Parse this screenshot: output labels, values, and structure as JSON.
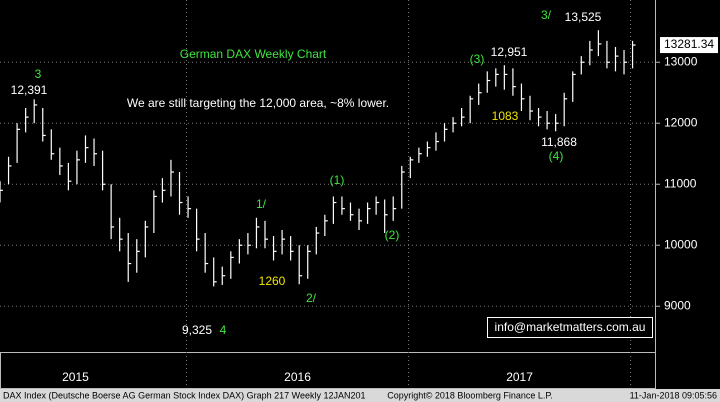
{
  "chart_data": {
    "type": "ohlc",
    "footer_left": "DAX Index (Deutsche Boerse AG German Stock Index DAX) Graph 217  Weekly 12JAN201",
    "footer_center": "Copyright© 2018 Bloomberg Finance L.P.",
    "footer_right": "11-Jan-2018 09:05:56",
    "annotations": [
      {
        "text": "German DAX Weekly Chart"
      },
      {
        "text": "We are still targeting the 12,000 area, ~8% lower."
      },
      {
        "text": "3"
      },
      {
        "text": "12,391"
      },
      {
        "text": "9,325"
      },
      {
        "text": "4"
      },
      {
        "text": "1/"
      },
      {
        "text": "1260"
      },
      {
        "text": "2/"
      },
      {
        "text": "(1)"
      },
      {
        "text": "(2)"
      },
      {
        "text": "(3)"
      },
      {
        "text": "12,951"
      },
      {
        "text": "1083"
      },
      {
        "text": "11,868"
      },
      {
        "text": "(4)"
      },
      {
        "text": "3/"
      },
      {
        "text": "13,525"
      },
      {
        "text": "info@marketmatters.com.au"
      }
    ],
    "color": "#ffffff",
    "xlim": [
      2015.16,
      2018.11
    ],
    "xticks": [
      {
        "value": 2015.5,
        "label": "2015"
      },
      {
        "value": 2016.5,
        "label": "2016"
      },
      {
        "value": 2017.5,
        "label": "2017"
      }
    ],
    "year_boundaries": [
      2016,
      2017,
      2018
    ],
    "ylim": [
      8250,
      14020
    ],
    "yticks": [
      9000,
      10000,
      11000,
      12000,
      13000
    ],
    "grid": true,
    "last_price": 13281.34,
    "x": [
      2015.16,
      2015.1985,
      2015.237,
      2015.2755,
      2015.314,
      2015.3525,
      2015.391,
      2015.4295,
      2015.468,
      2015.5065,
      2015.545,
      2015.5835,
      2015.622,
      2015.6605,
      2015.699,
      2015.7375,
      2015.776,
      2015.8145,
      2015.853,
      2015.8915,
      2015.93,
      2015.9685,
      2016.007,
      2016.0455,
      2016.084,
      2016.1225,
      2016.161,
      2016.1995,
      2016.238,
      2016.2765,
      2016.315,
      2016.3535,
      2016.392,
      2016.4305,
      2016.469,
      2016.5075,
      2016.546,
      2016.5845,
      2016.623,
      2016.6615,
      2016.7,
      2016.7385,
      2016.777,
      2016.8155,
      2016.854,
      2016.8925,
      2016.931,
      2016.9695,
      2017.008,
      2017.0465,
      2017.085,
      2017.1235,
      2017.162,
      2017.2005,
      2017.239,
      2017.2775,
      2017.316,
      2017.3545,
      2017.393,
      2017.4315,
      2017.47,
      2017.5085,
      2017.547,
      2017.5855,
      2017.624,
      2017.6625,
      2017.701,
      2017.7395,
      2017.778,
      2017.8165,
      2017.855,
      2017.8935,
      2017.932,
      2017.9705,
      2018.009
    ],
    "high": [
      11050,
      11450,
      12000,
      12250,
      12391,
      12250,
      11900,
      11600,
      11350,
      11550,
      11800,
      11750,
      11550,
      11000,
      10450,
      10200,
      10100,
      10400,
      10900,
      11100,
      11400,
      11200,
      10800,
      10600,
      10200,
      9800,
      9650,
      9900,
      10100,
      10200,
      10450,
      10400,
      10150,
      10250,
      10150,
      10000,
      10000,
      10300,
      10500,
      10800,
      10800,
      10700,
      10600,
      10700,
      10800,
      10750,
      10800,
      11300,
      11450,
      11600,
      11700,
      11850,
      12000,
      12100,
      12250,
      12450,
      12650,
      12850,
      12900,
      12951,
      12900,
      12650,
      12450,
      12250,
      12200,
      12150,
      12500,
      12850,
      13100,
      13350,
      13525,
      13350,
      13250,
      13200,
      13350
    ],
    "low": [
      10700,
      11000,
      11350,
      11850,
      12000,
      11700,
      11400,
      11150,
      10900,
      11000,
      11350,
      11300,
      10900,
      10100,
      9900,
      9400,
      9550,
      9800,
      10200,
      10700,
      10800,
      10500,
      10450,
      9900,
      9550,
      9325,
      9350,
      9450,
      9700,
      9850,
      9950,
      9950,
      9750,
      9850,
      9750,
      9360,
      9450,
      9850,
      10150,
      10350,
      10500,
      10400,
      10250,
      10350,
      10500,
      10200,
      10400,
      10600,
      11100,
      11350,
      11450,
      11550,
      11700,
      11850,
      11950,
      12000,
      12300,
      12500,
      12600,
      12550,
      12450,
      12200,
      12050,
      11950,
      11900,
      11868,
      11950,
      12350,
      12800,
      12950,
      13100,
      12900,
      12850,
      12800,
      12900
    ],
    "close": [
      10900,
      11300,
      11900,
      12100,
      12300,
      11800,
      11500,
      11300,
      11050,
      11400,
      11600,
      11500,
      11000,
      10300,
      10100,
      9700,
      9900,
      10300,
      10800,
      10900,
      11200,
      10700,
      10600,
      10100,
      9700,
      9400,
      9500,
      9800,
      10000,
      10000,
      10300,
      10100,
      9900,
      10100,
      9900,
      9500,
      9900,
      10200,
      10400,
      10700,
      10600,
      10500,
      10400,
      10600,
      10700,
      10500,
      10600,
      11200,
      11400,
      11500,
      11600,
      11700,
      11900,
      12000,
      12100,
      12400,
      12500,
      12700,
      12800,
      12800,
      12600,
      12400,
      12200,
      12100,
      12000,
      12000,
      12400,
      12800,
      13000,
      13200,
      13300,
      13000,
      13100,
      13000,
      13281.34
    ]
  }
}
